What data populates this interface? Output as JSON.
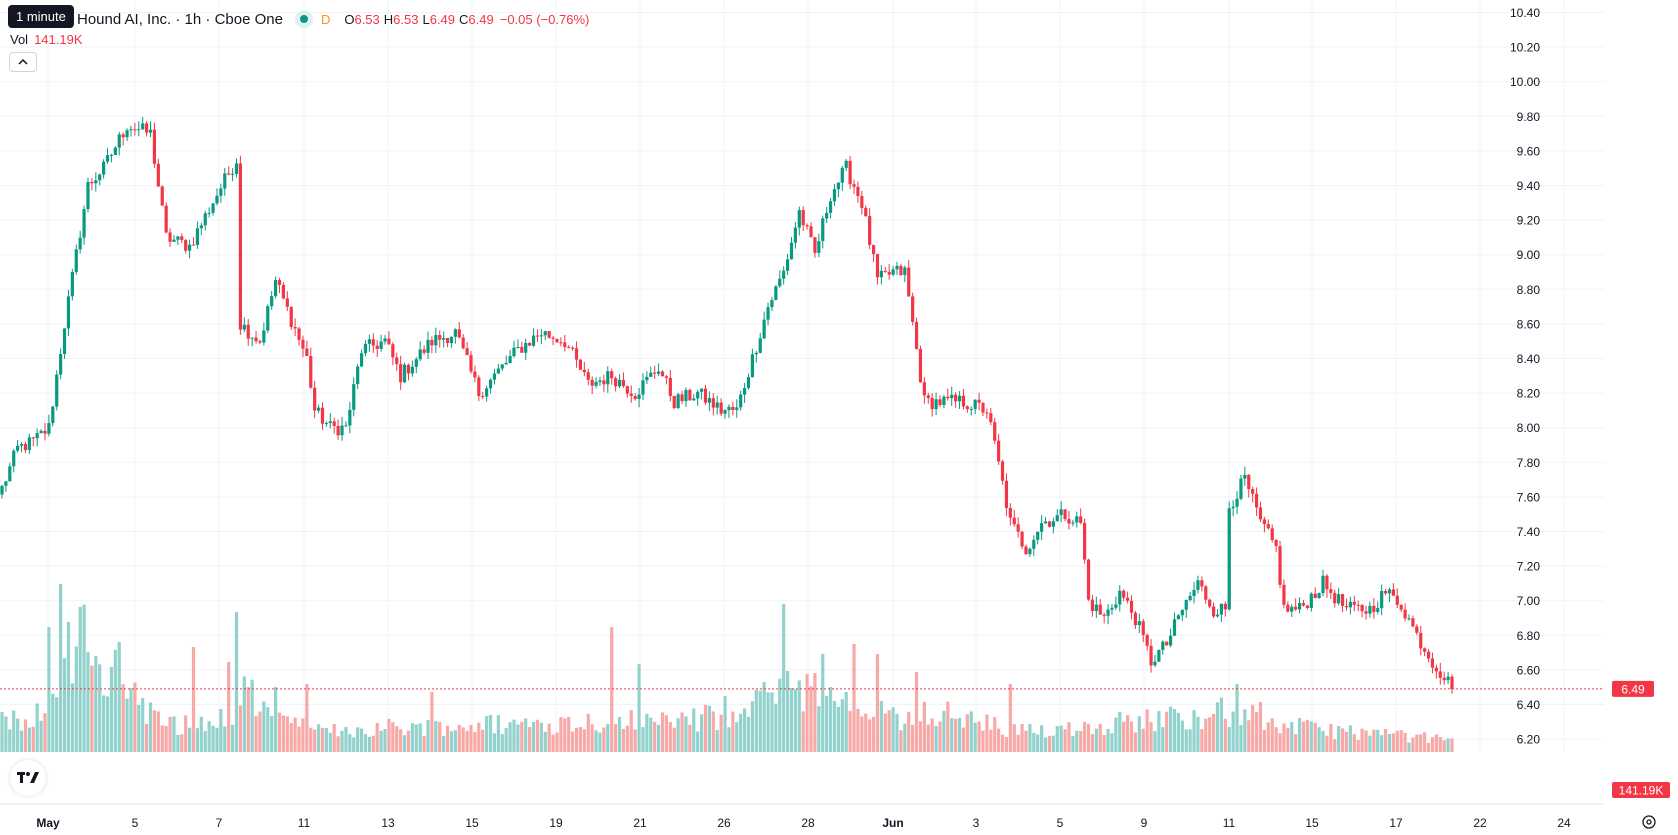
{
  "header": {
    "tooltip": "1 minute",
    "symbol_title": "Hound AI, Inc. · 1h · Cboe One",
    "d_marker": "D",
    "ohlc": [
      {
        "key": "O",
        "value": "6.53"
      },
      {
        "key": "H",
        "value": "6.53"
      },
      {
        "key": "L",
        "value": "6.49"
      },
      {
        "key": "C",
        "value": "6.49"
      }
    ],
    "change": "−0.05 (−0.76%)",
    "vol_label": "Vol",
    "vol_value": "141.19K"
  },
  "icons": {
    "collapse": "chevron-up-icon",
    "logo": "tradingview-logo-icon",
    "settings": "gear-icon"
  },
  "colors": {
    "up": "#089981",
    "down": "#f23645",
    "up_volume": "#92d2cc",
    "down_volume": "#f7a9a7",
    "grid": "#f0f3fa",
    "axis_text": "#131722"
  },
  "chart_data": {
    "type": "candlestick",
    "interval": "1h",
    "y_ticks": [
      "6.20",
      "6.40",
      "6.60",
      "6.80",
      "7.00",
      "7.20",
      "7.40",
      "7.60",
      "7.80",
      "8.00",
      "8.20",
      "8.40",
      "8.60",
      "8.80",
      "9.00",
      "9.20",
      "9.40",
      "9.60",
      "9.80",
      "10.00",
      "10.20",
      "10.40"
    ],
    "ylim": [
      6.2,
      10.4
    ],
    "x_labels": [
      "May",
      "5",
      "7",
      "11",
      "13",
      "15",
      "19",
      "21",
      "26",
      "28",
      "Jun",
      "3",
      "5",
      "9",
      "11",
      "15",
      "17",
      "22",
      "24"
    ],
    "last_price": "6.49",
    "last_volume": "141.19K",
    "price_path": [
      {
        "i": 0,
        "p": 7.65
      },
      {
        "i": 4,
        "p": 7.88
      },
      {
        "i": 8,
        "p": 7.92
      },
      {
        "i": 12,
        "p": 8.0
      },
      {
        "i": 16,
        "p": 8.6
      },
      {
        "i": 22,
        "p": 9.4
      },
      {
        "i": 26,
        "p": 9.5
      },
      {
        "i": 32,
        "p": 9.75
      },
      {
        "i": 38,
        "p": 9.7
      },
      {
        "i": 42,
        "p": 9.1
      },
      {
        "i": 48,
        "p": 9.05
      },
      {
        "i": 55,
        "p": 9.35
      },
      {
        "i": 60,
        "p": 9.55
      },
      {
        "i": 61,
        "p": 8.6
      },
      {
        "i": 66,
        "p": 8.5
      },
      {
        "i": 70,
        "p": 8.85
      },
      {
        "i": 78,
        "p": 8.4
      },
      {
        "i": 80,
        "p": 8.1
      },
      {
        "i": 84,
        "p": 8.0
      },
      {
        "i": 88,
        "p": 8.0
      },
      {
        "i": 92,
        "p": 8.45
      },
      {
        "i": 98,
        "p": 8.5
      },
      {
        "i": 102,
        "p": 8.3
      },
      {
        "i": 110,
        "p": 8.5
      },
      {
        "i": 116,
        "p": 8.55
      },
      {
        "i": 122,
        "p": 8.2
      },
      {
        "i": 126,
        "p": 8.3
      },
      {
        "i": 132,
        "p": 8.45
      },
      {
        "i": 138,
        "p": 8.55
      },
      {
        "i": 144,
        "p": 8.5
      },
      {
        "i": 150,
        "p": 8.25
      },
      {
        "i": 156,
        "p": 8.3
      },
      {
        "i": 162,
        "p": 8.2
      },
      {
        "i": 168,
        "p": 8.35
      },
      {
        "i": 172,
        "p": 8.15
      },
      {
        "i": 178,
        "p": 8.2
      },
      {
        "i": 184,
        "p": 8.1
      },
      {
        "i": 188,
        "p": 8.1
      },
      {
        "i": 192,
        "p": 8.4
      },
      {
        "i": 196,
        "p": 8.7
      },
      {
        "i": 200,
        "p": 8.9
      },
      {
        "i": 204,
        "p": 9.25
      },
      {
        "i": 208,
        "p": 9.0
      },
      {
        "i": 212,
        "p": 9.35
      },
      {
        "i": 216,
        "p": 9.5
      },
      {
        "i": 220,
        "p": 9.3
      },
      {
        "i": 224,
        "p": 8.85
      },
      {
        "i": 228,
        "p": 8.9
      },
      {
        "i": 231,
        "p": 8.9
      },
      {
        "i": 233,
        "p": 8.6
      },
      {
        "i": 236,
        "p": 8.15
      },
      {
        "i": 240,
        "p": 8.15
      },
      {
        "i": 246,
        "p": 8.15
      },
      {
        "i": 252,
        "p": 8.1
      },
      {
        "i": 254,
        "p": 7.9
      },
      {
        "i": 258,
        "p": 7.45
      },
      {
        "i": 262,
        "p": 7.3
      },
      {
        "i": 266,
        "p": 7.45
      },
      {
        "i": 272,
        "p": 7.5
      },
      {
        "i": 276,
        "p": 7.45
      },
      {
        "i": 278,
        "p": 7.0
      },
      {
        "i": 282,
        "p": 6.9
      },
      {
        "i": 286,
        "p": 7.05
      },
      {
        "i": 290,
        "p": 6.9
      },
      {
        "i": 294,
        "p": 6.65
      },
      {
        "i": 298,
        "p": 6.75
      },
      {
        "i": 302,
        "p": 6.95
      },
      {
        "i": 306,
        "p": 7.1
      },
      {
        "i": 310,
        "p": 6.95
      },
      {
        "i": 313,
        "p": 6.95
      },
      {
        "i": 314,
        "p": 7.55
      },
      {
        "i": 318,
        "p": 7.7
      },
      {
        "i": 322,
        "p": 7.45
      },
      {
        "i": 326,
        "p": 7.3
      },
      {
        "i": 328,
        "p": 6.95
      },
      {
        "i": 332,
        "p": 6.95
      },
      {
        "i": 338,
        "p": 7.1
      },
      {
        "i": 344,
        "p": 6.95
      },
      {
        "i": 350,
        "p": 6.95
      },
      {
        "i": 354,
        "p": 7.05
      },
      {
        "i": 358,
        "p": 6.98
      },
      {
        "i": 362,
        "p": 6.8
      },
      {
        "i": 366,
        "p": 6.65
      },
      {
        "i": 370,
        "p": 6.53
      },
      {
        "i": 371,
        "p": 6.49
      }
    ],
    "volume_path": [
      {
        "i": 0,
        "v": 30
      },
      {
        "i": 10,
        "v": 40
      },
      {
        "i": 15,
        "v": 60
      },
      {
        "i": 20,
        "v": 120
      },
      {
        "i": 24,
        "v": 70
      },
      {
        "i": 28,
        "v": 90
      },
      {
        "i": 35,
        "v": 55
      },
      {
        "i": 40,
        "v": 30
      },
      {
        "i": 50,
        "v": 25
      },
      {
        "i": 60,
        "v": 40
      },
      {
        "i": 61,
        "v": 60
      },
      {
        "i": 70,
        "v": 35
      },
      {
        "i": 80,
        "v": 20
      },
      {
        "i": 100,
        "v": 25
      },
      {
        "i": 150,
        "v": 30
      },
      {
        "i": 190,
        "v": 35
      },
      {
        "i": 200,
        "v": 70
      },
      {
        "i": 215,
        "v": 50
      },
      {
        "i": 232,
        "v": 30
      },
      {
        "i": 233,
        "v": 45
      },
      {
        "i": 260,
        "v": 20
      },
      {
        "i": 314,
        "v": 40
      },
      {
        "i": 330,
        "v": 25
      },
      {
        "i": 371,
        "v": 12
      }
    ],
    "volume_spikes": [
      {
        "i": 12,
        "v": 125
      },
      {
        "i": 15,
        "v": 168
      },
      {
        "i": 17,
        "v": 130
      },
      {
        "i": 20,
        "v": 145
      },
      {
        "i": 22,
        "v": 100
      },
      {
        "i": 28,
        "v": 85
      },
      {
        "i": 30,
        "v": 110
      },
      {
        "i": 49,
        "v": 105
      },
      {
        "i": 58,
        "v": 90
      },
      {
        "i": 60,
        "v": 140
      },
      {
        "i": 70,
        "v": 65
      },
      {
        "i": 78,
        "v": 68
      },
      {
        "i": 110,
        "v": 60
      },
      {
        "i": 156,
        "v": 125
      },
      {
        "i": 163,
        "v": 88
      },
      {
        "i": 185,
        "v": 56
      },
      {
        "i": 195,
        "v": 70
      },
      {
        "i": 200,
        "v": 148
      },
      {
        "i": 202,
        "v": 64
      },
      {
        "i": 210,
        "v": 98
      },
      {
        "i": 218,
        "v": 108
      },
      {
        "i": 224,
        "v": 98
      },
      {
        "i": 234,
        "v": 80
      },
      {
        "i": 258,
        "v": 68
      },
      {
        "i": 316,
        "v": 68
      },
      {
        "i": 322,
        "v": 50
      },
      {
        "i": 330,
        "v": 30
      }
    ]
  }
}
